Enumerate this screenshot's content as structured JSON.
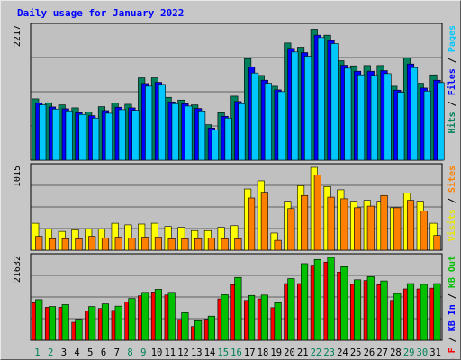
{
  "chart_data": {
    "type": "bar",
    "title": "Daily usage for January 2022",
    "categories": [
      "1",
      "2",
      "3",
      "4",
      "5",
      "6",
      "7",
      "8",
      "9",
      "10",
      "11",
      "12",
      "13",
      "14",
      "15",
      "16",
      "17",
      "18",
      "19",
      "20",
      "21",
      "22",
      "23",
      "24",
      "25",
      "26",
      "27",
      "28",
      "29",
      "30",
      "31"
    ],
    "weekend_days": [
      "1",
      "2",
      "8",
      "9",
      "15",
      "16",
      "22",
      "23",
      "29",
      "30"
    ],
    "panels": [
      {
        "max_label": "2217",
        "ymax": 2217,
        "right_labels": [
          {
            "text": "Hits",
            "color": "#00805c"
          },
          {
            "text": " / ",
            "color": "#000000"
          },
          {
            "text": "Files",
            "color": "#0000ff"
          },
          {
            "text": " / ",
            "color": "#000000"
          },
          {
            "text": "Pages",
            "color": "#00c8ff"
          }
        ],
        "series": [
          {
            "name": "Hits",
            "color": "#00805c",
            "values": [
              1020,
              955,
              920,
              870,
              800,
              890,
              950,
              930,
              1370,
              1370,
              1045,
              1000,
              920,
              590,
              790,
              1065,
              1690,
              1410,
              1230,
              1950,
              1880,
              2180,
              2080,
              1655,
              1570,
              1575,
              1575,
              1230,
              1700,
              1280,
              1420
            ]
          },
          {
            "name": "Files",
            "color": "#0000ff",
            "values": [
              950,
              885,
              855,
              790,
              740,
              825,
              880,
              870,
              1275,
              1295,
              970,
              940,
              860,
              535,
              730,
              975,
              1550,
              1330,
              1170,
              1860,
              1790,
              2080,
              1990,
              1580,
              1480,
              1480,
              1490,
              1165,
              1600,
              1200,
              1330
            ]
          },
          {
            "name": "Pages",
            "color": "#00c8ff",
            "values": [
              920,
              850,
              820,
              760,
              700,
              780,
              840,
              830,
              1230,
              1260,
              940,
              900,
              820,
              500,
              700,
              940,
              1450,
              1280,
              1140,
              1800,
              1730,
              2040,
              1940,
              1530,
              1420,
              1410,
              1440,
              1130,
              1540,
              1150,
              1290
            ]
          }
        ]
      },
      {
        "max_label": "1015",
        "ymax": 1015,
        "right_labels": [
          {
            "text": "Visits",
            "color": "#e8e800"
          },
          {
            "text": " / ",
            "color": "#000000"
          },
          {
            "text": "Sites",
            "color": "#ff8000"
          }
        ],
        "series": [
          {
            "name": "Visits",
            "color": "#ffff00",
            "values": [
              330,
              260,
              230,
              250,
              260,
              260,
              330,
              310,
              320,
              330,
              290,
              280,
              240,
              240,
              280,
              300,
              750,
              850,
              210,
              600,
              790,
              1015,
              780,
              740,
              600,
              610,
              600,
              520,
              700,
              600,
              330
            ]
          },
          {
            "name": "Sites",
            "color": "#ff8000",
            "values": [
              170,
              140,
              140,
              140,
              170,
              150,
              160,
              150,
              160,
              160,
              140,
              140,
              140,
              150,
              140,
              140,
              640,
              710,
              120,
              510,
              670,
              920,
              650,
              630,
              520,
              540,
              670,
              520,
              610,
              480,
              180
            ]
          }
        ]
      },
      {
        "max_label": "21632",
        "ymax": 21632,
        "right_labels": [
          {
            "text": "KB F",
            "color": "#ff0000"
          },
          {
            "text": " / ",
            "color": "#000000"
          },
          {
            "text": "KB In",
            "color": "#0000ff"
          },
          {
            "text": " / ",
            "color": "#000000"
          },
          {
            "text": "KB Out",
            "color": "#00c000"
          }
        ],
        "series": [
          {
            "name": "KB F",
            "color": "#ff0000",
            "values": [
              9800,
              8600,
              8600,
              4700,
              7600,
              8300,
              7800,
              10000,
              11600,
              12600,
              11800,
              5400,
              3600,
              5500,
              10800,
              14500,
              10400,
              10800,
              8500,
              14800,
              14800,
              19600,
              20400,
              17800,
              14600,
              15600,
              14500,
              10400,
              13400,
              13400,
              13600
            ]
          },
          {
            "name": "KB Out",
            "color": "#00c000",
            "values": [
              10600,
              8800,
              9300,
              5500,
              8800,
              9500,
              8900,
              10900,
              12500,
              13300,
              12500,
              7200,
              5100,
              6300,
              11900,
              16400,
              11700,
              11800,
              9800,
              16100,
              20000,
              21100,
              21632,
              19200,
              15800,
              16600,
              15500,
              12200,
              14800,
              14600,
              14800
            ]
          }
        ]
      }
    ]
  }
}
